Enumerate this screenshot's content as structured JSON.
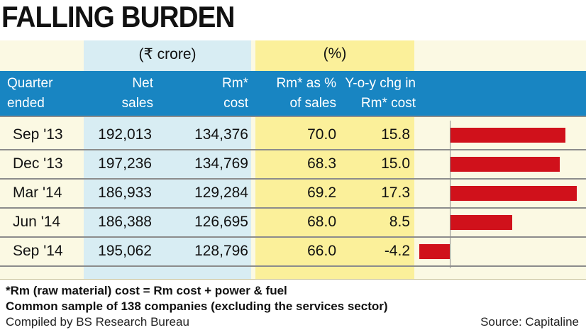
{
  "title": "FALLING BURDEN",
  "units": {
    "left": "(₹ crore)",
    "right": "(%)"
  },
  "headers": {
    "quarter": [
      "Quarter",
      "ended"
    ],
    "net_sales": [
      "Net",
      "sales"
    ],
    "rm_cost": [
      "Rm*",
      "cost"
    ],
    "rm_pct": [
      "Rm* as %",
      "of sales"
    ],
    "yoy": [
      "Y-o-y chg in",
      "Rm* cost"
    ]
  },
  "chart_data": {
    "type": "table",
    "title": "FALLING BURDEN",
    "columns": [
      "Quarter ended",
      "Net sales",
      "Rm* cost",
      "Rm* as % of sales",
      "Y-o-y chg in Rm* cost"
    ],
    "rows": [
      {
        "quarter": "Sep '13",
        "net_sales": "192,013",
        "rm_cost": "134,376",
        "rm_pct": "70.0",
        "yoy": "15.8"
      },
      {
        "quarter": "Dec '13",
        "net_sales": "197,236",
        "rm_cost": "134,769",
        "rm_pct": "68.3",
        "yoy": "15.0"
      },
      {
        "quarter": "Mar '14",
        "net_sales": "186,933",
        "rm_cost": "129,284",
        "rm_pct": "69.2",
        "yoy": "17.3"
      },
      {
        "quarter": "Jun '14",
        "net_sales": "186,388",
        "rm_cost": "126,695",
        "rm_pct": "68.0",
        "yoy": "8.5"
      },
      {
        "quarter": "Sep '14",
        "net_sales": "195,062",
        "rm_cost": "128,796",
        "rm_pct": "66.0",
        "yoy": "-4.2"
      }
    ],
    "bar_series": {
      "name": "Y-o-y chg in Rm* cost",
      "values": [
        15.8,
        15.0,
        17.3,
        8.5,
        -4.2
      ],
      "color": "#d0111b"
    }
  },
  "footnotes": {
    "note1": "*Rm (raw material) cost = Rm cost + power & fuel",
    "note2": "Common sample of 138 companies (excluding the services sector)",
    "compiled": "Compiled by BS Research Bureau",
    "source": "Source: Capitaline"
  },
  "colors": {
    "header": "#1885c2",
    "bar": "#d0111b",
    "blue_band": "#d8edf3",
    "yellow_band": "#fbf09a",
    "panel": "#fbf9e3"
  }
}
